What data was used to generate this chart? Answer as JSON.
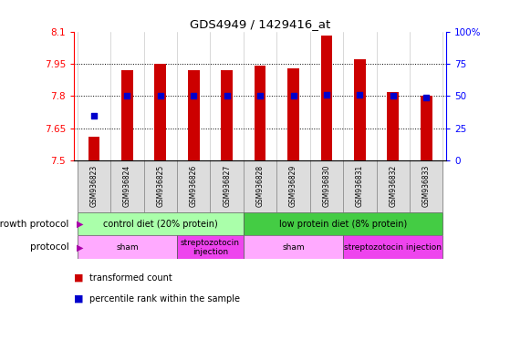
{
  "title": "GDS4949 / 1429416_at",
  "samples": [
    "GSM936823",
    "GSM936824",
    "GSM936825",
    "GSM936826",
    "GSM936827",
    "GSM936828",
    "GSM936829",
    "GSM936830",
    "GSM936831",
    "GSM936832",
    "GSM936833"
  ],
  "transformed_count": [
    7.61,
    7.92,
    7.95,
    7.92,
    7.92,
    7.94,
    7.93,
    8.08,
    7.97,
    7.82,
    7.8
  ],
  "percentile_rank": [
    35,
    50,
    50,
    50,
    50,
    50,
    50,
    51,
    51,
    50,
    49
  ],
  "ylim_left": [
    7.5,
    8.1
  ],
  "ylim_right": [
    0,
    100
  ],
  "yticks_left": [
    7.5,
    7.65,
    7.8,
    7.95,
    8.1
  ],
  "yticks_right": [
    0,
    25,
    50,
    75,
    100
  ],
  "ytick_labels_left": [
    "7.5",
    "7.65",
    "7.8",
    "7.95",
    "8.1"
  ],
  "ytick_labels_right": [
    "0",
    "25",
    "50",
    "75",
    "100%"
  ],
  "bar_color": "#CC0000",
  "dot_color": "#0000CC",
  "bar_bottom": 7.5,
  "growth_protocol_groups": [
    {
      "label": "control diet (20% protein)",
      "start": 0,
      "end": 4,
      "color": "#AAFFAA"
    },
    {
      "label": "low protein diet (8% protein)",
      "start": 5,
      "end": 10,
      "color": "#44DD44"
    }
  ],
  "protocol_groups": [
    {
      "label": "sham",
      "start": 0,
      "end": 2,
      "color": "#FFAAFF"
    },
    {
      "label": "streptozotocin\ninjection",
      "start": 3,
      "end": 4,
      "color": "#EE44EE"
    },
    {
      "label": "sham",
      "start": 5,
      "end": 7,
      "color": "#FFAAFF"
    },
    {
      "label": "streptozotocin injection",
      "start": 8,
      "end": 10,
      "color": "#EE44EE"
    }
  ],
  "bar_width": 0.35,
  "sample_col_color": "#DDDDDD",
  "arrow_color": "#AA00AA"
}
